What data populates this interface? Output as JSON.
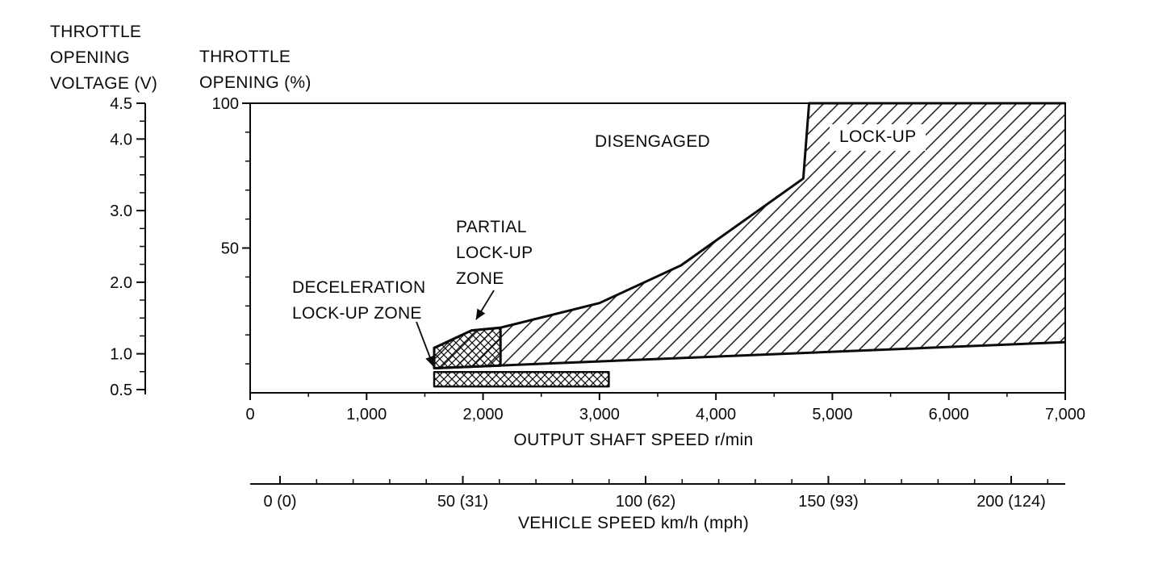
{
  "colors": {
    "ink": "#0a0a0a",
    "background": "#ffffff"
  },
  "chart_data": {
    "type": "area",
    "plot": {
      "x_axis": {
        "label": "OUTPUT SHAFT SPEED r/min",
        "range": [
          0,
          7000
        ],
        "major_ticks": [
          0,
          1000,
          2000,
          3000,
          4000,
          5000,
          6000,
          7000
        ],
        "major_tick_labels": [
          "0",
          "1,000",
          "2,000",
          "3,000",
          "4,000",
          "5,000",
          "6,000",
          "7,000"
        ],
        "minor_tick_step": 500
      },
      "y_axis_percent": {
        "label": "THROTTLE\nOPENING (%)",
        "range": [
          0,
          100
        ],
        "major_ticks": [
          50,
          100
        ],
        "major_tick_labels": [
          "50",
          "100"
        ],
        "minor_ticks": [
          10,
          20,
          30,
          40,
          60,
          70,
          80,
          90
        ]
      },
      "y_axis_voltage": {
        "label": "THROTTLE\nOPENING\nVOLTAGE (V)",
        "range": [
          0.5,
          4.5
        ],
        "major_ticks": [
          4.5,
          4.0,
          3.0,
          2.0,
          1.0,
          0.5
        ],
        "major_tick_labels": [
          "4.5",
          "4.0",
          "3.0",
          "2.0",
          "1.0",
          "0.5"
        ],
        "minor_tick_step": 0.25
      },
      "x_axis_secondary": {
        "label": "VEHICLE SPEED km/h (mph)",
        "major_ticks": [
          0,
          50,
          100,
          150,
          200
        ],
        "major_tick_labels": [
          "0 (0)",
          "50 (31)",
          "100 (62)",
          "150 (93)",
          "200 (124)"
        ],
        "minor_tick_step": 10,
        "minor_tick_max": 210
      }
    },
    "regions": {
      "disengaged": {
        "label": "DISENGAGED"
      },
      "lockup": {
        "label": "LOCK-UP",
        "upper_boundary": [
          [
            1580,
            8.5
          ],
          [
            1580,
            15.5
          ],
          [
            1900,
            21.5
          ],
          [
            2150,
            22.5
          ],
          [
            3000,
            31
          ],
          [
            3700,
            44
          ],
          [
            4750,
            74
          ],
          [
            4800,
            100
          ],
          [
            7000,
            100
          ]
        ],
        "lower_boundary": [
          [
            1580,
            8.5
          ],
          [
            7000,
            17.5
          ]
        ]
      },
      "partial_lockup": {
        "label": "PARTIAL\nLOCK-UP\nZONE",
        "polygon": [
          [
            1580,
            8.5
          ],
          [
            1580,
            15.5
          ],
          [
            1900,
            21.5
          ],
          [
            2150,
            22.5
          ],
          [
            2150,
            9.4
          ]
        ]
      },
      "deceleration_lockup": {
        "label": "DECELERATION\nLOCK-UP ZONE",
        "polygon": [
          [
            1580,
            2.2
          ],
          [
            1580,
            7.2
          ],
          [
            3080,
            7.2
          ],
          [
            3080,
            2.2
          ]
        ]
      }
    }
  }
}
